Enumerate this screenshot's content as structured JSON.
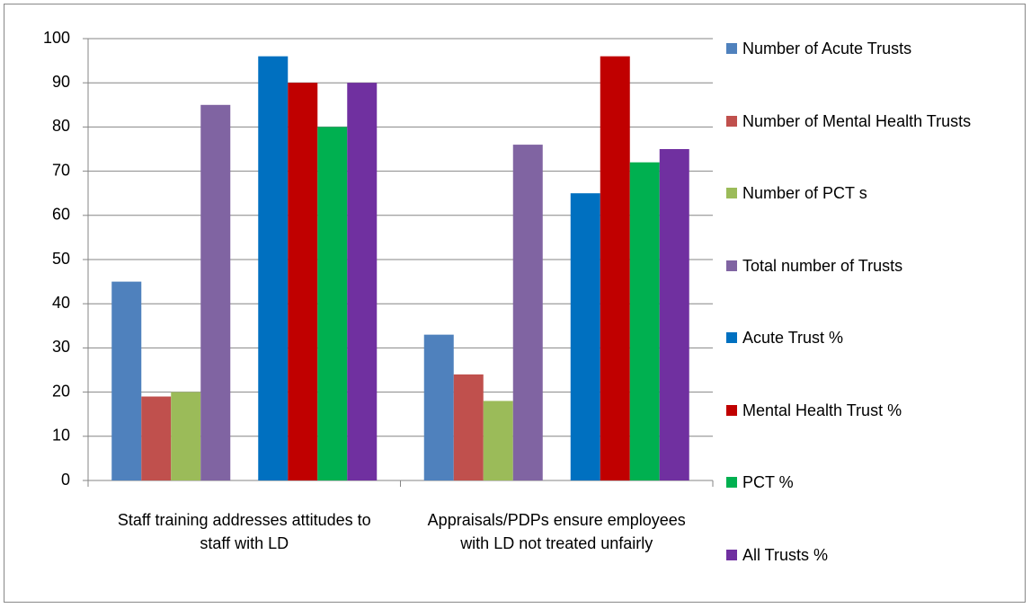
{
  "chart_data": {
    "type": "bar",
    "categories": [
      "Staff training addresses attitudes to staff with LD",
      "Appraisals/PDPs ensure employees with LD not treated unfairly"
    ],
    "series": [
      {
        "name": "Number of Acute Trusts",
        "color": "#4f81bd",
        "values": [
          45,
          33
        ]
      },
      {
        "name": "Number of Mental Health Trusts",
        "color": "#c0504d",
        "values": [
          19,
          24
        ]
      },
      {
        "name": "Number of PCT s",
        "color": "#9bbb59",
        "values": [
          20,
          18
        ]
      },
      {
        "name": "Total number of Trusts",
        "color": "#8064a2",
        "values": [
          85,
          76
        ]
      },
      {
        "name": "Acute Trust %",
        "color": "#0070c0",
        "values": [
          96,
          65
        ]
      },
      {
        "name": "Mental Health Trust %",
        "color": "#c00000",
        "values": [
          90,
          96
        ]
      },
      {
        "name": "PCT %",
        "color": "#00b050",
        "values": [
          80,
          72
        ]
      },
      {
        "name": "All Trusts %",
        "color": "#7030a0",
        "values": [
          90,
          75
        ]
      }
    ],
    "ylim": [
      0,
      100
    ],
    "yticks": [
      0,
      10,
      20,
      30,
      40,
      50,
      60,
      70,
      80,
      90,
      100
    ],
    "grid": true,
    "legend": "right"
  }
}
